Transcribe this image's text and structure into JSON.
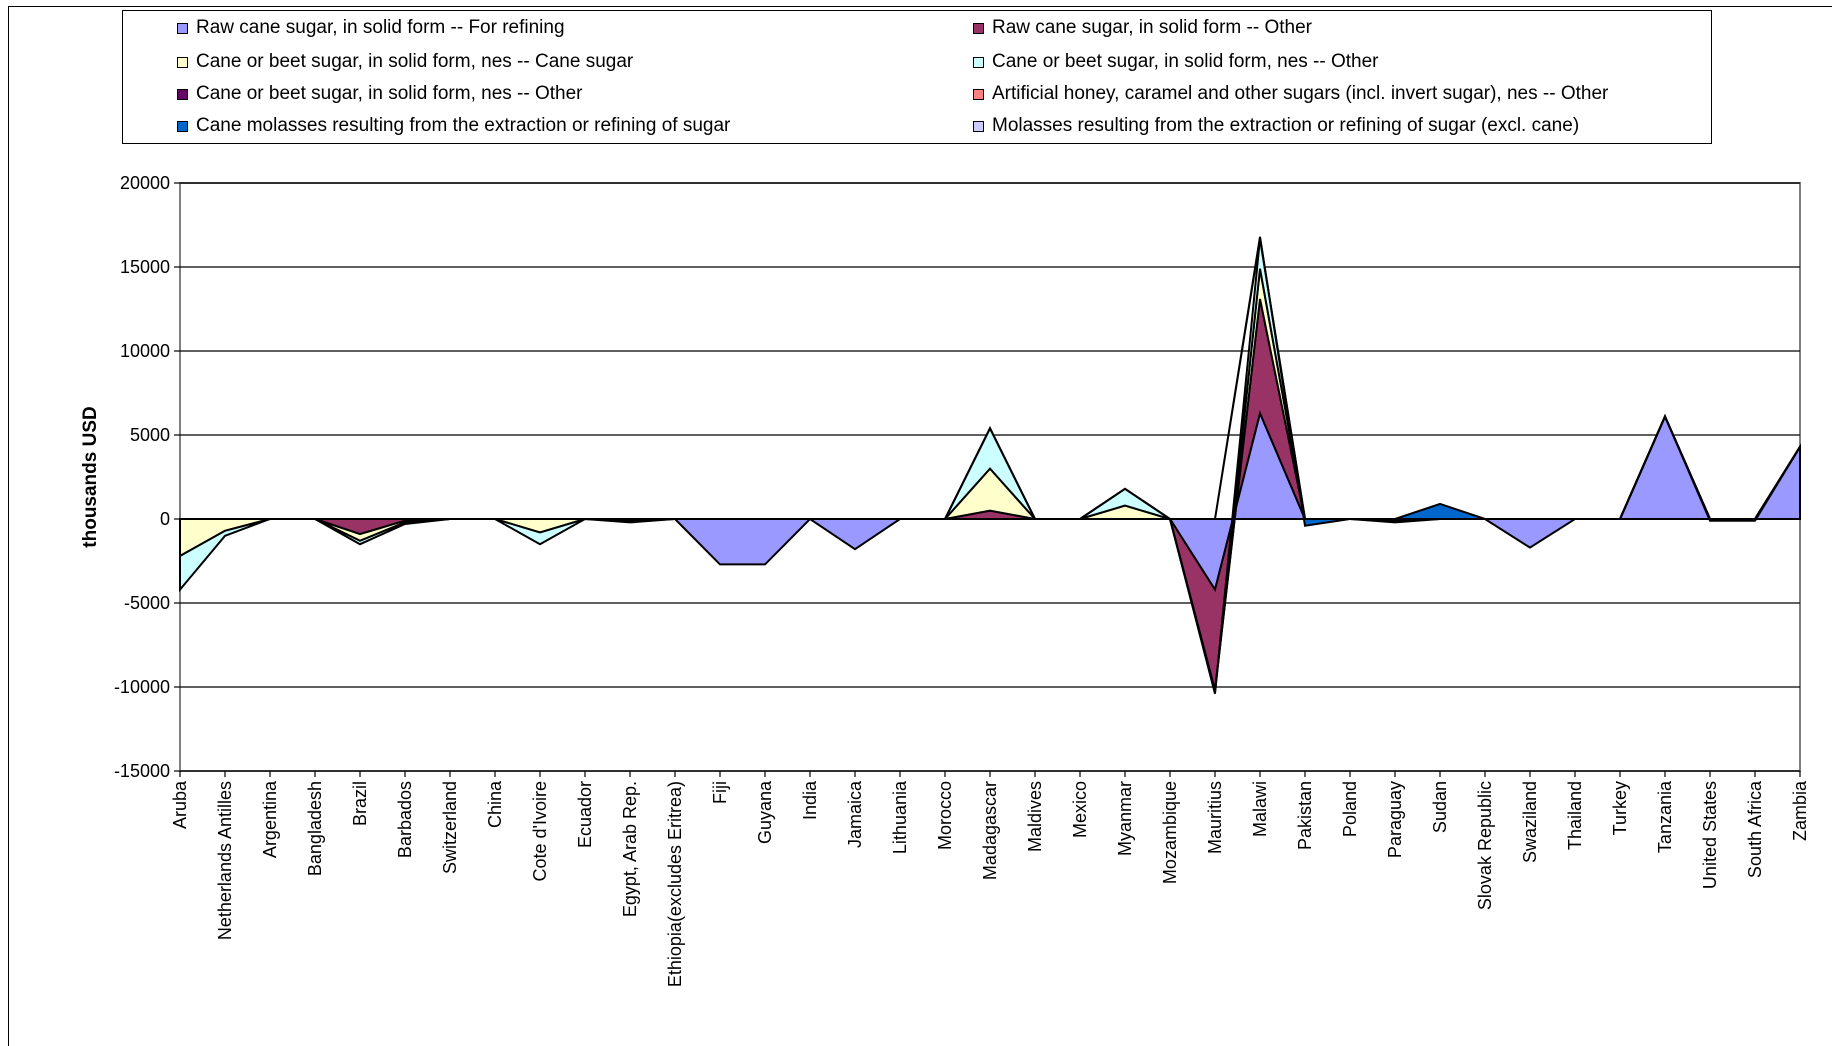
{
  "chart_data": {
    "type": "area",
    "stacked": true,
    "ylabel": "thousands USD",
    "xlabel": "",
    "ylim": [
      -15000,
      20000
    ],
    "yticks": [
      20000,
      15000,
      10000,
      5000,
      0,
      -5000,
      -10000,
      -15000
    ],
    "grid": "horizontal",
    "legend_position": "top",
    "categories": [
      "Aruba",
      "Netherlands Antilles",
      "Argentina",
      "Bangladesh",
      "Brazil",
      "Barbados",
      "Switzerland",
      "China",
      "Cote d'Ivoire",
      "Ecuador",
      "Egypt, Arab Rep.",
      "Ethiopia(excludes Eritrea)",
      "Fiji",
      "Guyana",
      "India",
      "Jamaica",
      "Lithuania",
      "Morocco",
      "Madagascar",
      "Maldives",
      "Mexico",
      "Myanmar",
      "Mozambique",
      "Mauritius",
      "Malawi",
      "Pakistan",
      "Poland",
      "Paraguay",
      "Sudan",
      "Slovak Republic",
      "Swaziland",
      "Thailand",
      "Turkey",
      "Tanzania",
      "United States",
      "South Africa",
      "Zambia"
    ],
    "series": [
      {
        "name": "Raw cane sugar, in solid form -- For refining",
        "color": "#9999ff",
        "values": [
          0,
          0,
          0,
          0,
          0,
          0,
          0,
          0,
          0,
          0,
          0,
          0,
          -2700,
          -2700,
          0,
          -1800,
          0,
          0,
          0,
          0,
          0,
          0,
          0,
          -4200,
          6300,
          0,
          0,
          0,
          0,
          0,
          -1700,
          0,
          0,
          6100,
          0,
          0,
          4300
        ]
      },
      {
        "name": "Raw cane sugar, in solid form -- Other",
        "color": "#993366",
        "values": [
          0,
          0,
          0,
          0,
          -900,
          -100,
          0,
          0,
          0,
          0,
          0,
          0,
          0,
          0,
          0,
          0,
          0,
          0,
          500,
          0,
          0,
          0,
          0,
          -6000,
          6800,
          0,
          0,
          0,
          0,
          0,
          0,
          0,
          0,
          0,
          0,
          0,
          0
        ]
      },
      {
        "name": "Cane or beet sugar, in solid form, nes -- Cane sugar",
        "color": "#ffffcc",
        "values": [
          -2200,
          -700,
          0,
          0,
          -400,
          -100,
          0,
          0,
          -800,
          0,
          -100,
          0,
          0,
          0,
          0,
          0,
          0,
          0,
          2500,
          0,
          0,
          800,
          0,
          -100,
          1800,
          0,
          0,
          -100,
          0,
          0,
          0,
          0,
          0,
          0,
          -100,
          -100,
          0
        ]
      },
      {
        "name": "Cane or beet sugar, in solid form, nes -- Other",
        "color": "#ccffff",
        "values": [
          -2000,
          -300,
          0,
          0,
          -200,
          -100,
          0,
          0,
          -700,
          0,
          -100,
          0,
          0,
          0,
          0,
          0,
          0,
          0,
          2400,
          0,
          0,
          1000,
          0,
          -100,
          1800,
          0,
          0,
          -100,
          0,
          0,
          0,
          0,
          0,
          0,
          0,
          0,
          0
        ]
      },
      {
        "name": "Cane or beet sugar, in solid form, nes -- Other",
        "color": "#660066",
        "values": [
          0,
          0,
          0,
          0,
          0,
          0,
          0,
          0,
          0,
          0,
          0,
          0,
          0,
          0,
          0,
          0,
          0,
          0,
          0,
          0,
          0,
          0,
          0,
          0,
          0,
          0,
          0,
          0,
          0,
          0,
          0,
          0,
          0,
          0,
          0,
          0,
          0
        ]
      },
      {
        "name": "Artificial honey, caramel and other sugars (incl. invert sugar), nes -- Other",
        "color": "#ff8080",
        "values": [
          0,
          0,
          0,
          0,
          0,
          0,
          0,
          0,
          0,
          0,
          0,
          0,
          0,
          0,
          0,
          0,
          0,
          0,
          0,
          0,
          0,
          0,
          0,
          0,
          0,
          0,
          0,
          0,
          0,
          0,
          0,
          0,
          0,
          0,
          0,
          0,
          0
        ]
      },
      {
        "name": "Cane molasses resulting from the extraction or refining of sugar",
        "color": "#0066cc",
        "values": [
          0,
          0,
          0,
          0,
          0,
          0,
          0,
          0,
          0,
          0,
          0,
          0,
          0,
          0,
          0,
          0,
          0,
          0,
          0,
          0,
          0,
          0,
          0,
          0,
          100,
          -400,
          0,
          0,
          900,
          0,
          0,
          0,
          0,
          0,
          0,
          0,
          0
        ]
      },
      {
        "name": "Molasses resulting from the extraction or refining of sugar (excl. cane)",
        "color": "#ccccff",
        "values": [
          0,
          0,
          0,
          0,
          0,
          0,
          0,
          0,
          0,
          0,
          0,
          0,
          0,
          0,
          0,
          0,
          0,
          0,
          0,
          0,
          0,
          0,
          0,
          0,
          0,
          0,
          0,
          0,
          0,
          0,
          0,
          0,
          0,
          0,
          0,
          0,
          0
        ]
      }
    ]
  }
}
